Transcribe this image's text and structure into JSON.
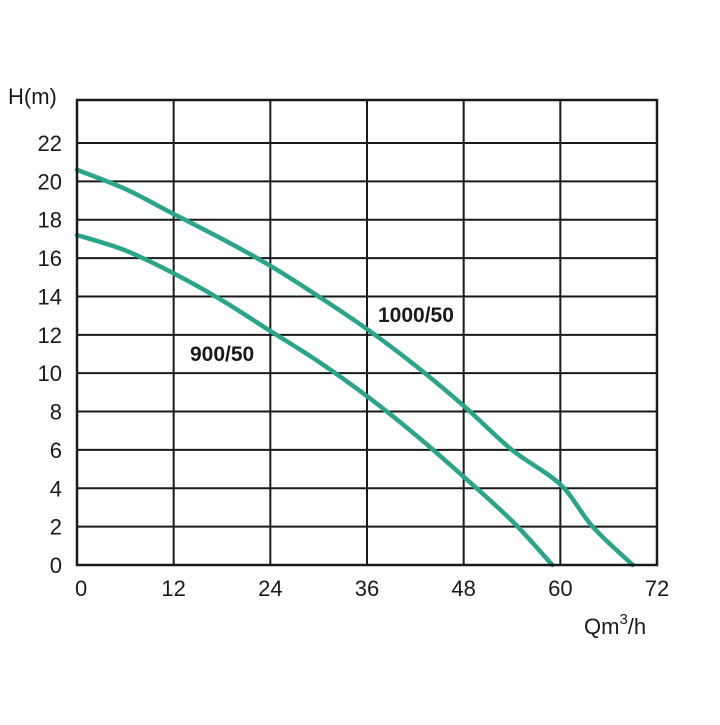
{
  "chart_data": {
    "type": "line",
    "title": "",
    "ylabel": "H(m)",
    "xlabel_main": "Qm",
    "xlabel_sup": "3",
    "xlabel_tail": "/h",
    "xlim": [
      0,
      72
    ],
    "ylim": [
      0,
      22
    ],
    "x_ticks": [
      "0",
      "12",
      "24",
      "36",
      "48",
      "60",
      "72"
    ],
    "y_ticks": [
      "0",
      "2",
      "4",
      "6",
      "8",
      "10",
      "12",
      "14",
      "16",
      "18",
      "20",
      "22"
    ],
    "grid": true,
    "line_color": "#2aa58a",
    "series": [
      {
        "name": "1000/50",
        "points": [
          [
            0,
            20.6
          ],
          [
            6,
            19.6
          ],
          [
            12,
            18.3
          ],
          [
            18,
            17.0
          ],
          [
            24,
            15.6
          ],
          [
            30,
            14.0
          ],
          [
            36,
            12.3
          ],
          [
            42,
            10.4
          ],
          [
            48,
            8.3
          ],
          [
            54,
            6.0
          ],
          [
            60,
            4.2
          ],
          [
            64,
            2.0
          ],
          [
            69,
            0
          ]
        ]
      },
      {
        "name": "900/50",
        "points": [
          [
            0,
            17.2
          ],
          [
            6,
            16.4
          ],
          [
            12,
            15.2
          ],
          [
            18,
            13.8
          ],
          [
            24,
            12.2
          ],
          [
            30,
            10.6
          ],
          [
            36,
            8.8
          ],
          [
            42,
            6.8
          ],
          [
            48,
            4.6
          ],
          [
            54,
            2.3
          ],
          [
            59,
            0
          ]
        ]
      }
    ]
  }
}
